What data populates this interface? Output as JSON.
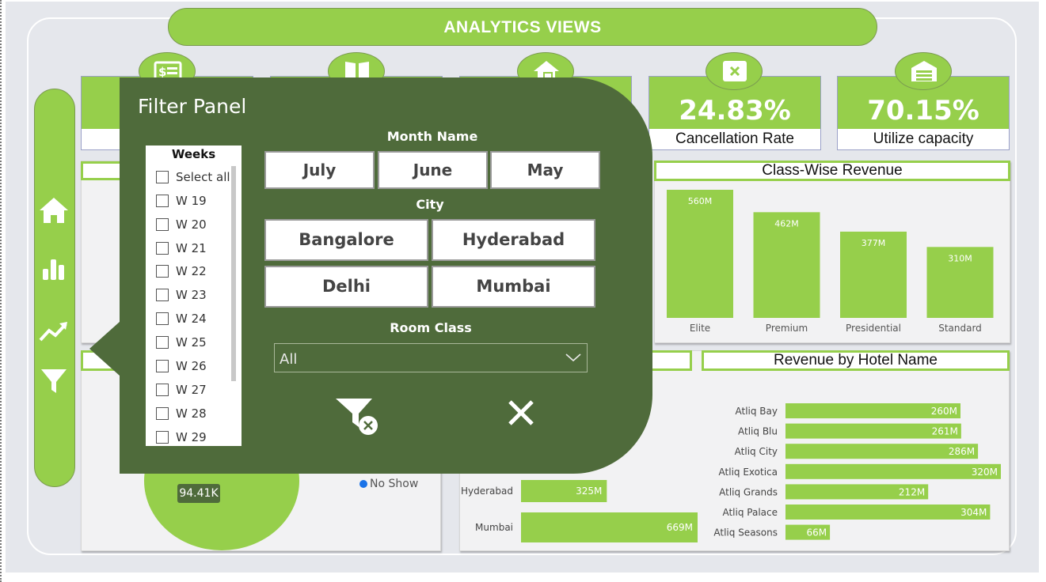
{
  "header": {
    "title": "ANALYTICS VIEWS"
  },
  "sidebar": {
    "icons": [
      "home-icon",
      "bar-chart-icon",
      "trend-icon",
      "filter-icon"
    ]
  },
  "kpis": [
    {
      "value": "",
      "label": "",
      "icon": "dollar-card-icon"
    },
    {
      "value": "",
      "label": "",
      "icon": "book-icon"
    },
    {
      "value": "",
      "label": "",
      "icon": "house-icon"
    },
    {
      "value": "24.83%",
      "label": "Cancellation Rate",
      "icon": "x-card-icon"
    },
    {
      "value": "70.15%",
      "label": "Utilize capacity",
      "icon": "garage-icon"
    }
  ],
  "class_revenue": {
    "title": "Class-Wise Revenue",
    "chart_data": {
      "type": "bar",
      "categories": [
        "Elite",
        "Premium",
        "Presidential",
        "Standard"
      ],
      "values": [
        560,
        462,
        377,
        310
      ],
      "value_labels": [
        "560M",
        "462M",
        "377M",
        "310M"
      ]
    }
  },
  "hotel_revenue": {
    "title": "Revenue  by Hotel Name",
    "chart_data": {
      "type": "bar",
      "orientation": "horizontal",
      "categories": [
        "Atliq Bay",
        "Atliq Blu",
        "Atliq City",
        "Atliq Exotica",
        "Atliq Grands",
        "Atliq Palace",
        "Atliq Seasons"
      ],
      "values": [
        260,
        261,
        286,
        320,
        212,
        304,
        66
      ],
      "value_labels": [
        "260M",
        "261M",
        "286M",
        "320M",
        "212M",
        "304M",
        "66M"
      ]
    }
  },
  "city_revenue": {
    "chart_data": {
      "type": "bar",
      "orientation": "horizontal",
      "categories": [
        "Hyderabad",
        "Mumbai"
      ],
      "values": [
        325,
        669
      ],
      "value_labels": [
        "325M",
        "669M"
      ]
    }
  },
  "booking_status": {
    "center_value": "94.41K",
    "legend": [
      "No Show"
    ]
  },
  "filter_panel": {
    "title": "Filter Panel",
    "weeks": {
      "heading": "Weeks",
      "items": [
        "Select all",
        "W 19",
        "W 20",
        "W 21",
        "W 22",
        "W 23",
        "W 24",
        "W 25",
        "W 26",
        "W 27",
        "W 28",
        "W 29"
      ]
    },
    "month": {
      "heading": "Month Name",
      "options": [
        "July",
        "June",
        "May"
      ]
    },
    "city": {
      "heading": "City",
      "options": [
        "Bangalore",
        "Hyderabad",
        "Delhi",
        "Mumbai"
      ]
    },
    "room_class": {
      "heading": "Room Class",
      "selected": "All"
    }
  },
  "colors": {
    "accent": "#96cf4b",
    "panel": "#4f6b3b",
    "background": "#e5e7ec"
  }
}
